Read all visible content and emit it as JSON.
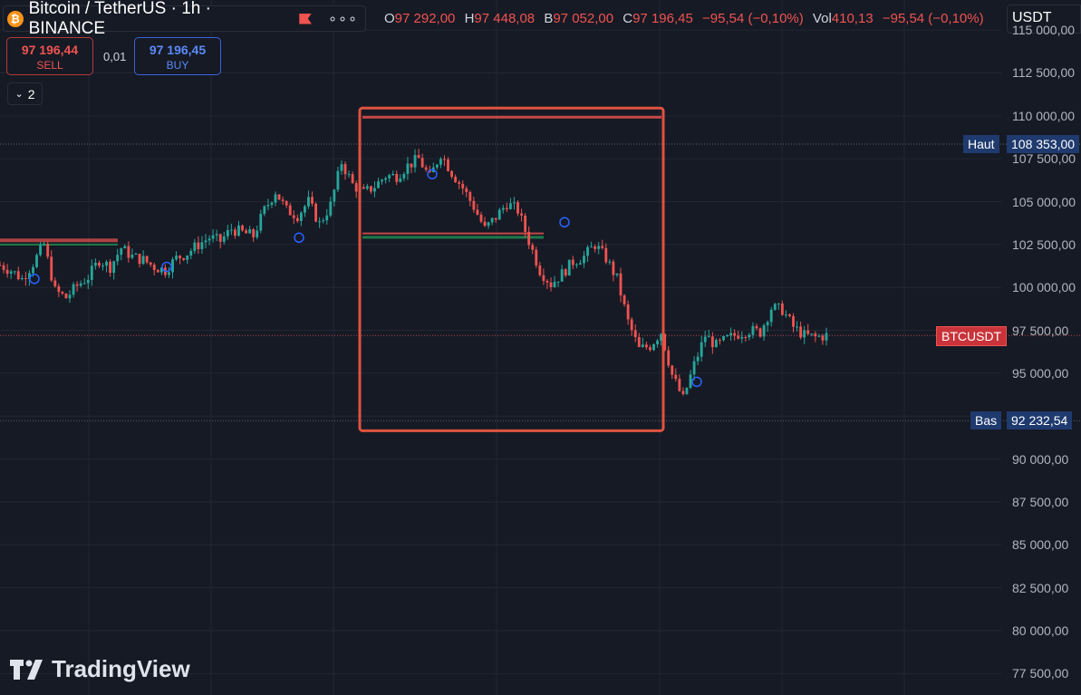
{
  "header": {
    "coin_glyph": "₿",
    "title": "Bitcoin / TetherUS · 1h · BINANCE",
    "ohlc": [
      {
        "k": "O",
        "v": "97 292,00"
      },
      {
        "k": "H",
        "v": "97 448,08"
      },
      {
        "k": "B",
        "v": "97 052,00"
      },
      {
        "k": "C",
        "v": "97 196,45"
      },
      {
        "k": "",
        "v": "−95,54 (−0,10%)"
      },
      {
        "k": "Vol",
        "v": "410,13"
      },
      {
        "k": "",
        "v": "−95,54 (−0,10%)"
      }
    ]
  },
  "trade": {
    "sell_price": "97 196,44",
    "sell_label": "SELL",
    "spread": "0,01",
    "buy_price": "97 196,45",
    "buy_label": "BUY",
    "collapse_count": "2"
  },
  "currency": "USDT",
  "price_axis": {
    "min": 76250,
    "max": 116750,
    "labels": [
      "115 000,00",
      "112 500,00",
      "110 000,00",
      "107 500,00",
      "105 000,00",
      "102 500,00",
      "100 000,00",
      "97 500,00",
      "95 000,00",
      "92 500,00",
      "90 000,00",
      "87 500,00",
      "85 000,00",
      "82 500,00",
      "80 000,00",
      "77 500,00"
    ],
    "values": [
      115000,
      112500,
      110000,
      107500,
      105000,
      102500,
      100000,
      97500,
      95000,
      92500,
      90000,
      87500,
      85000,
      82500,
      80000,
      77500
    ]
  },
  "tags": {
    "high_label": "Haut",
    "high_value": "108 353,00",
    "high_price": 108353,
    "low_label": "Bas",
    "low_value": "92 232,54",
    "low_price": 92232.54,
    "symbol_label": "BTCUSDT",
    "last_price": 97196.45
  },
  "colors": {
    "up": "#26a69a",
    "down": "#ef5350",
    "highlight_box": "#e0533f",
    "zone_line": "#1f7a4a",
    "marker": "#2962ff"
  },
  "watermark": "TradingView",
  "chart_data": {
    "type": "candlestick",
    "symbol": "BTCUSDT",
    "interval": "1h",
    "close_path": [
      101300,
      101000,
      100500,
      101400,
      102500,
      99800,
      99400,
      100100,
      100600,
      101600,
      101200,
      102300,
      101800,
      101600,
      101200,
      101000,
      101700,
      102000,
      102500,
      102900,
      102700,
      103400,
      103200,
      103000,
      104500,
      105600,
      104500,
      104200,
      105000,
      103700,
      104800,
      107300,
      106000,
      105500,
      105900,
      106500,
      106500,
      107100,
      107500,
      106400,
      107800,
      106700,
      105800,
      104700,
      103400,
      104100,
      104900,
      104500,
      102700,
      101000,
      100200,
      100800,
      101500,
      101800,
      102500,
      101700,
      100500,
      98000,
      96400,
      96600,
      97400,
      94900,
      93500,
      95500,
      97200,
      96600,
      97000,
      97300,
      97500,
      97400,
      98800,
      98700,
      97700,
      97200,
      97100,
      97196
    ]
  }
}
